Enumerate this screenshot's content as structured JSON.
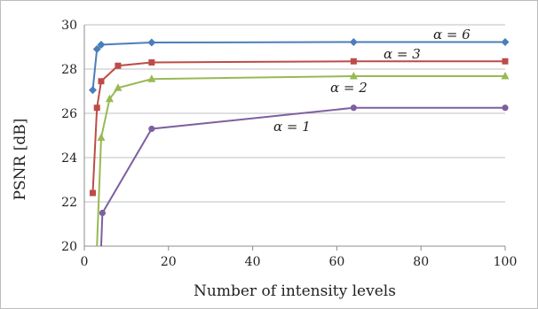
{
  "chart_data": {
    "type": "line",
    "title": "",
    "xlabel": "Number of intensity levels",
    "ylabel": "PSNR [dB]",
    "xlim": [
      0,
      100
    ],
    "ylim": [
      20,
      30
    ],
    "x_ticks": [
      "0",
      "20",
      "40",
      "60",
      "80",
      "100"
    ],
    "y_ticks": [
      "20",
      "22",
      "24",
      "26",
      "28",
      "30"
    ],
    "grid": "horizontal",
    "legend": "none (inline series labels)",
    "series": [
      {
        "name": "α = 6",
        "color": "#4a7ebb",
        "marker": "diamond",
        "x": [
          2,
          3,
          4,
          16,
          64,
          100
        ],
        "y": [
          27.05,
          28.9,
          29.1,
          29.2,
          29.22,
          29.22
        ]
      },
      {
        "name": "α = 3",
        "color": "#be4b48",
        "marker": "square",
        "x": [
          2,
          3,
          4,
          8,
          16,
          64,
          100
        ],
        "y": [
          22.4,
          26.25,
          27.45,
          28.15,
          28.3,
          28.35,
          28.35
        ]
      },
      {
        "name": "α = 2",
        "color": "#98b954",
        "marker": "triangle",
        "x": [
          3,
          4,
          6,
          8,
          16,
          64,
          100
        ],
        "y": [
          20,
          24.9,
          26.65,
          27.15,
          27.55,
          27.68,
          27.68
        ]
      },
      {
        "name": "α = 1",
        "color": "#7d60a0",
        "marker": "circle",
        "x": [
          4,
          4.3,
          16,
          64,
          100
        ],
        "y": [
          20,
          21.5,
          25.3,
          26.25,
          26.25
        ]
      }
    ]
  }
}
